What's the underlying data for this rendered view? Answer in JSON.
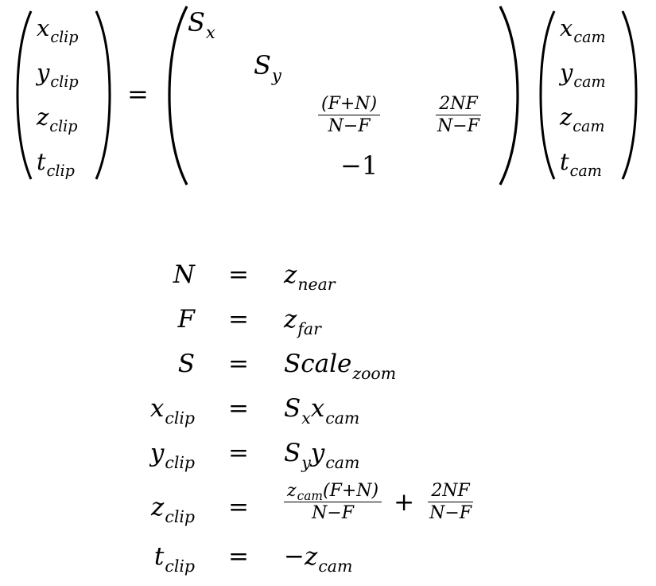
{
  "equation": {
    "lhs_vector": [
      {
        "base": "x",
        "sub": "clip"
      },
      {
        "base": "y",
        "sub": "clip"
      },
      {
        "base": "z",
        "sub": "clip"
      },
      {
        "base": "t",
        "sub": "clip"
      }
    ],
    "equals": "=",
    "matrix": {
      "m11": {
        "base": "S",
        "sub": "x"
      },
      "m22": {
        "base": "S",
        "sub": "y"
      },
      "m33": {
        "num": "(F+N)",
        "den": "N−F"
      },
      "m34": {
        "num": "2NF",
        "den": "N−F"
      },
      "m43": "−1"
    },
    "rhs_vector": [
      {
        "base": "x",
        "sub": "cam"
      },
      {
        "base": "y",
        "sub": "cam"
      },
      {
        "base": "z",
        "sub": "cam"
      },
      {
        "base": "t",
        "sub": "cam"
      }
    ]
  },
  "definitions": [
    {
      "lhs": {
        "base": "N",
        "sub": ""
      },
      "op": "=",
      "rhs": {
        "base": "z",
        "sub": "near"
      }
    },
    {
      "lhs": {
        "base": "F",
        "sub": ""
      },
      "op": "=",
      "rhs": {
        "base": "z",
        "sub": "far"
      }
    },
    {
      "lhs": {
        "base": "S",
        "sub": ""
      },
      "op": "=",
      "rhs": {
        "base": "Scale",
        "sub": "zoom"
      }
    },
    {
      "lhs": {
        "base": "x",
        "sub": "clip"
      },
      "op": "=",
      "rhs": {
        "a_base": "S",
        "a_sub": "x",
        "b_base": "x",
        "b_sub": "cam"
      }
    },
    {
      "lhs": {
        "base": "y",
        "sub": "clip"
      },
      "op": "=",
      "rhs": {
        "a_base": "S",
        "a_sub": "y",
        "b_base": "y",
        "b_sub": "cam"
      }
    },
    {
      "lhs": {
        "base": "z",
        "sub": "clip"
      },
      "op": "=",
      "rhs": {
        "frac1_num_base": "z",
        "frac1_num_sub": "cam",
        "frac1_num_rest": "(F+N)",
        "frac1_den": "N−F",
        "plus": "+",
        "frac2_num": "2NF",
        "frac2_den": "N−F"
      }
    },
    {
      "lhs": {
        "base": "t",
        "sub": "clip"
      },
      "op": "=",
      "rhs": {
        "prefix": "−",
        "base": "z",
        "sub": "cam"
      }
    }
  ]
}
